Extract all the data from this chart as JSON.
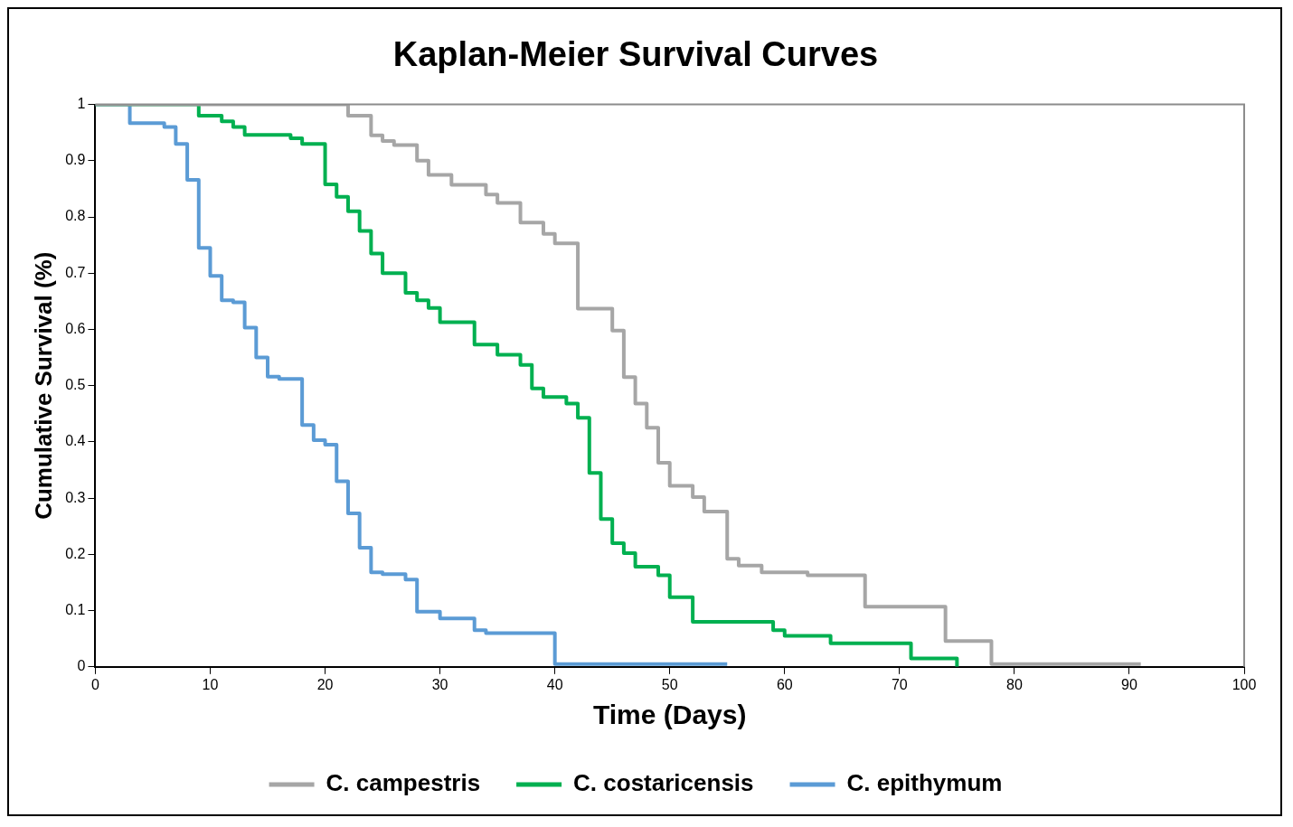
{
  "chart_data": {
    "type": "step",
    "title": "Kaplan-Meier Survival Curves",
    "xlabel": "Time (Days)",
    "ylabel": "Cumulative Survival (%)",
    "xlim": [
      0,
      100
    ],
    "xticks": [
      0,
      10,
      20,
      30,
      40,
      50,
      60,
      70,
      80,
      90,
      100
    ],
    "ylim": [
      0,
      1
    ],
    "yticks": [
      0,
      0.1,
      0.2,
      0.3,
      0.4,
      0.5,
      0.6,
      0.7,
      0.8,
      0.9,
      1
    ],
    "grid": false,
    "legend": "bottom",
    "marker": "none",
    "line_style": "solid",
    "series": [
      {
        "name": "C. campestris",
        "color": "#a6a6a6",
        "x": [
          0,
          22,
          24,
          25,
          26,
          28,
          29,
          31,
          34,
          35,
          37,
          39,
          40,
          42,
          45,
          46,
          47,
          48,
          49,
          50,
          52,
          53,
          55,
          56,
          58,
          62,
          67,
          74,
          78,
          91
        ],
        "values": [
          1,
          0.98,
          0.945,
          0.935,
          0.928,
          0.9,
          0.875,
          0.857,
          0.84,
          0.825,
          0.79,
          0.77,
          0.753,
          0.637,
          0.598,
          0.515,
          0.468,
          0.425,
          0.363,
          0.322,
          0.302,
          0.276,
          0.192,
          0.18,
          0.168,
          0.163,
          0.107,
          0.046,
          0.005,
          0.005
        ]
      },
      {
        "name": "C. costaricensis",
        "color": "#00b050",
        "x": [
          0,
          9,
          11,
          12,
          13,
          17,
          18,
          20,
          21,
          22,
          23,
          24,
          25,
          27,
          28,
          29,
          30,
          33,
          35,
          37,
          38,
          39,
          41,
          42,
          43,
          44,
          45,
          46,
          47,
          49,
          50,
          52,
          59,
          60,
          64,
          71,
          75
        ],
        "values": [
          1,
          0.98,
          0.97,
          0.96,
          0.946,
          0.94,
          0.93,
          0.858,
          0.836,
          0.81,
          0.775,
          0.735,
          0.7,
          0.665,
          0.652,
          0.638,
          0.613,
          0.573,
          0.555,
          0.537,
          0.495,
          0.48,
          0.468,
          0.443,
          0.345,
          0.263,
          0.22,
          0.202,
          0.178,
          0.163,
          0.124,
          0.08,
          0.065,
          0.055,
          0.042,
          0.015,
          0
        ]
      },
      {
        "name": "C. epithymum",
        "color": "#5b9bd5",
        "x": [
          0,
          3,
          6,
          7,
          8,
          9,
          10,
          11,
          12,
          13,
          14,
          15,
          16,
          18,
          19,
          20,
          21,
          22,
          23,
          24,
          25,
          27,
          28,
          30,
          33,
          34,
          40,
          55
        ],
        "values": [
          1,
          0.967,
          0.96,
          0.93,
          0.866,
          0.745,
          0.695,
          0.652,
          0.648,
          0.603,
          0.55,
          0.516,
          0.512,
          0.43,
          0.403,
          0.395,
          0.33,
          0.273,
          0.212,
          0.168,
          0.165,
          0.155,
          0.098,
          0.086,
          0.065,
          0.06,
          0.005,
          0.005
        ]
      }
    ]
  }
}
